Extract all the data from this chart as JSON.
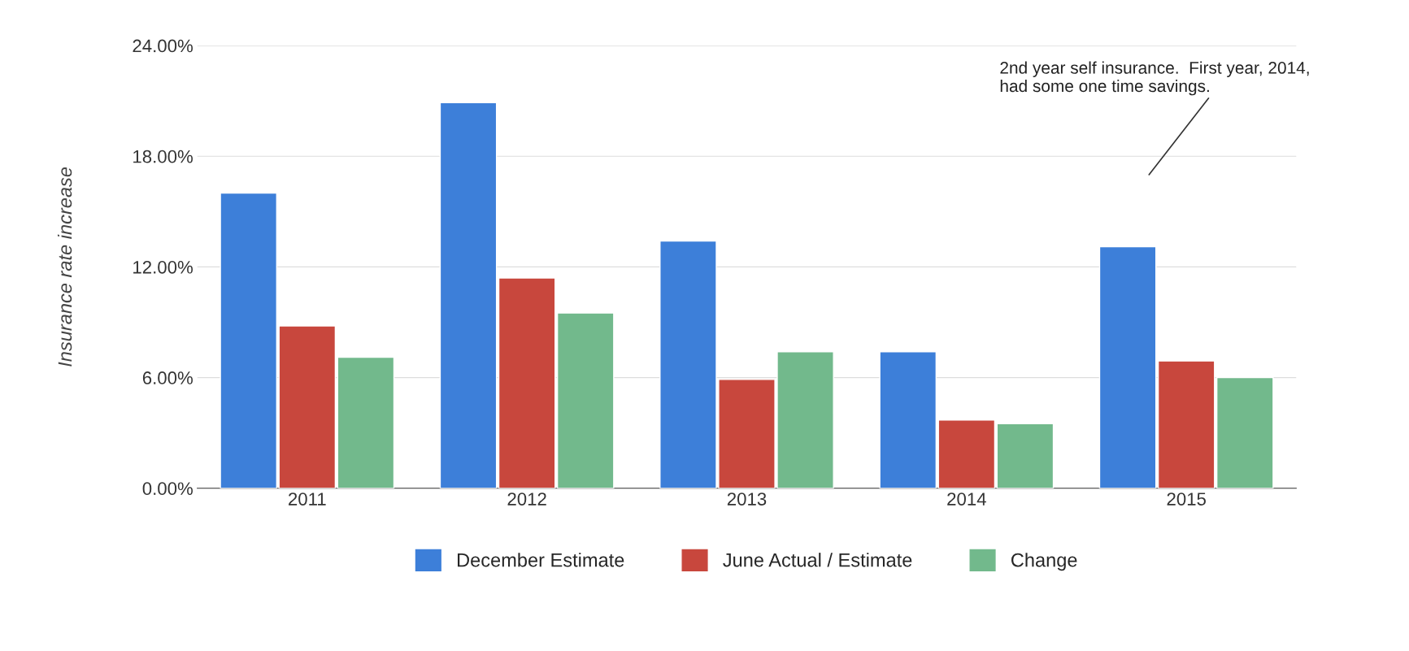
{
  "chart_data": {
    "type": "bar",
    "ylabel": "Insurance rate increase",
    "categories": [
      "2011",
      "2012",
      "2013",
      "2014",
      "2015"
    ],
    "series": [
      {
        "name": "December Estimate",
        "color": "#3d7fd9",
        "values": [
          16.0,
          20.9,
          13.4,
          7.4,
          13.1
        ]
      },
      {
        "name": "June Actual / Estimate",
        "color": "#c8473d",
        "values": [
          8.8,
          11.4,
          5.9,
          3.7,
          6.9
        ]
      },
      {
        "name": "Change",
        "color": "#72b98c",
        "values": [
          7.1,
          9.5,
          7.4,
          3.5,
          6.0
        ]
      }
    ],
    "ylim": [
      0,
      24
    ],
    "yticks": [
      {
        "value": 0,
        "label": "0.00%"
      },
      {
        "value": 6,
        "label": "6.00%"
      },
      {
        "value": 12,
        "label": "12.00%"
      },
      {
        "value": 18,
        "label": "18.00%"
      },
      {
        "value": 24,
        "label": "24.00%"
      }
    ],
    "grid": "y",
    "legend": "bottom",
    "annotations": [
      "2nd year self insurance.  First year, 2014,\nhad some one time savings."
    ]
  }
}
